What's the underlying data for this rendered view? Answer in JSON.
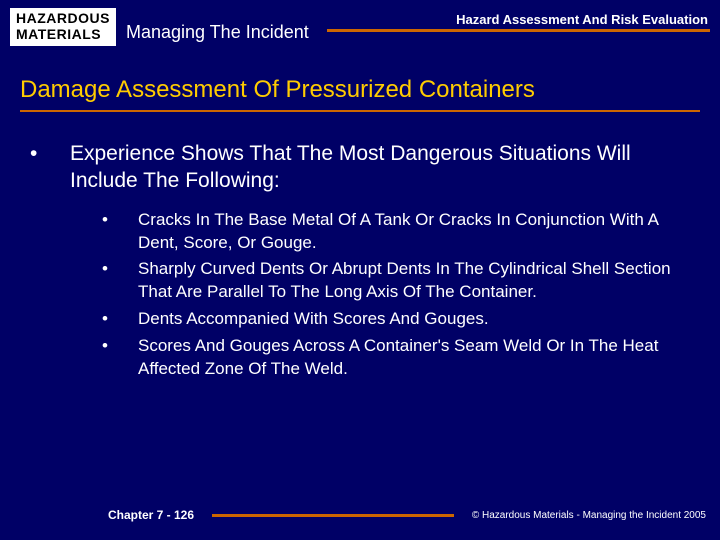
{
  "header": {
    "logo_line1": "HAZARDOUS",
    "logo_line2": "MATERIALS",
    "subtitle": "Managing The Incident",
    "right_title": "Hazard Assessment And Risk Evaluation"
  },
  "slide": {
    "title": "Damage Assessment Of Pressurized Containers"
  },
  "content": {
    "lead_bullet": "•",
    "lead_text": "Experience Shows That The Most Dangerous Situations Will Include The Following:",
    "sub_bullet": "•",
    "items": [
      "Cracks In The Base Metal Of A Tank Or Cracks In Conjunction With A Dent, Score, Or Gouge.",
      "Sharply Curved Dents Or Abrupt Dents In The Cylindrical Shell Section That Are Parallel To The Long Axis Of The Container.",
      "Dents Accompanied With Scores And Gouges.",
      "Scores And Gouges Across A Container's Seam Weld Or In The Heat Affected Zone Of The Weld."
    ]
  },
  "footer": {
    "chapter": "Chapter 7 - 126",
    "copyright": "© Hazardous Materials - Managing the Incident 2005"
  },
  "colors": {
    "background": "#000066",
    "title": "#ffcc00",
    "rule": "#cc6600",
    "text": "#ffffff",
    "logo_bg": "#ffffff",
    "logo_text": "#000000"
  }
}
